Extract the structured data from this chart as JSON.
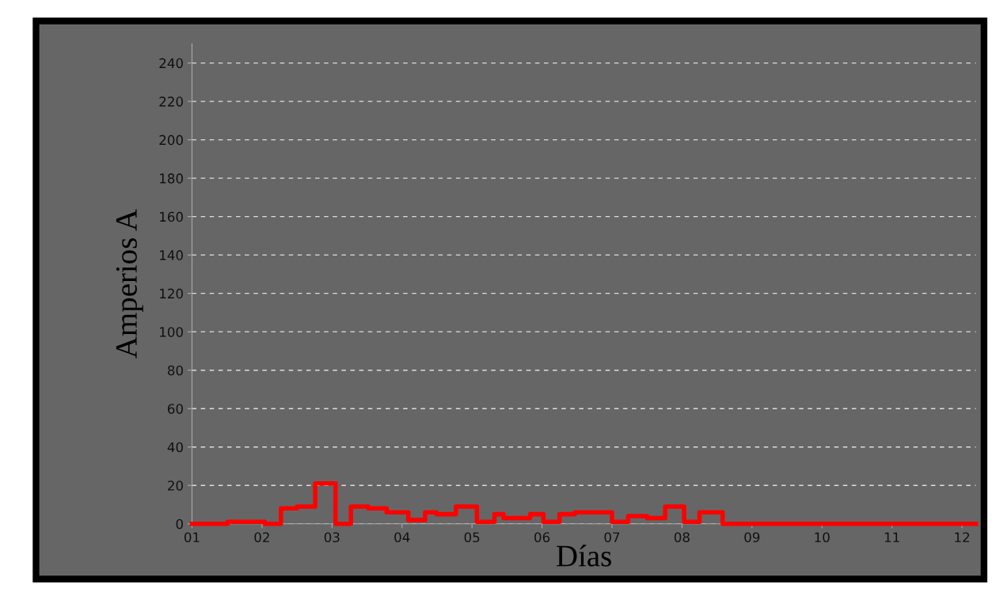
{
  "chart_data": {
    "type": "step",
    "xlabel": "Días",
    "ylabel": "Amperios A",
    "x": [
      1.0,
      1.51,
      2.04,
      2.27,
      2.5,
      2.76,
      3.05,
      3.27,
      3.52,
      3.78,
      4.09,
      4.33,
      4.49,
      4.77,
      5.07,
      5.32,
      5.45,
      5.83,
      6.02,
      6.25,
      6.47,
      7.0,
      7.23,
      7.5,
      7.76,
      8.03,
      8.25,
      8.58,
      12.2
    ],
    "series": [
      {
        "color": "#ff0000",
        "values": [
          0,
          1,
          0,
          8,
          9,
          21,
          0,
          9,
          8,
          6,
          2,
          6,
          5,
          9,
          1,
          5,
          3,
          5,
          1,
          5,
          6,
          1,
          4,
          3,
          9,
          1,
          6,
          0,
          0
        ]
      }
    ],
    "xlim": [
      1,
      12.2
    ],
    "xticks": [
      {
        "value": 1,
        "label": "01"
      },
      {
        "value": 2,
        "label": "02"
      },
      {
        "value": 3,
        "label": "03"
      },
      {
        "value": 4,
        "label": "04"
      },
      {
        "value": 5,
        "label": "05"
      },
      {
        "value": 6,
        "label": "06"
      },
      {
        "value": 7,
        "label": "07"
      },
      {
        "value": 8,
        "label": "08"
      },
      {
        "value": 9,
        "label": "09"
      },
      {
        "value": 10,
        "label": "10"
      },
      {
        "value": 11,
        "label": "11"
      },
      {
        "value": 12,
        "label": "12"
      }
    ],
    "ylim": [
      0,
      250
    ],
    "yticks": [
      0,
      20,
      40,
      60,
      80,
      100,
      120,
      140,
      160,
      180,
      200,
      220,
      240
    ],
    "grid": "y",
    "line_style": "solid",
    "marker": "none"
  }
}
